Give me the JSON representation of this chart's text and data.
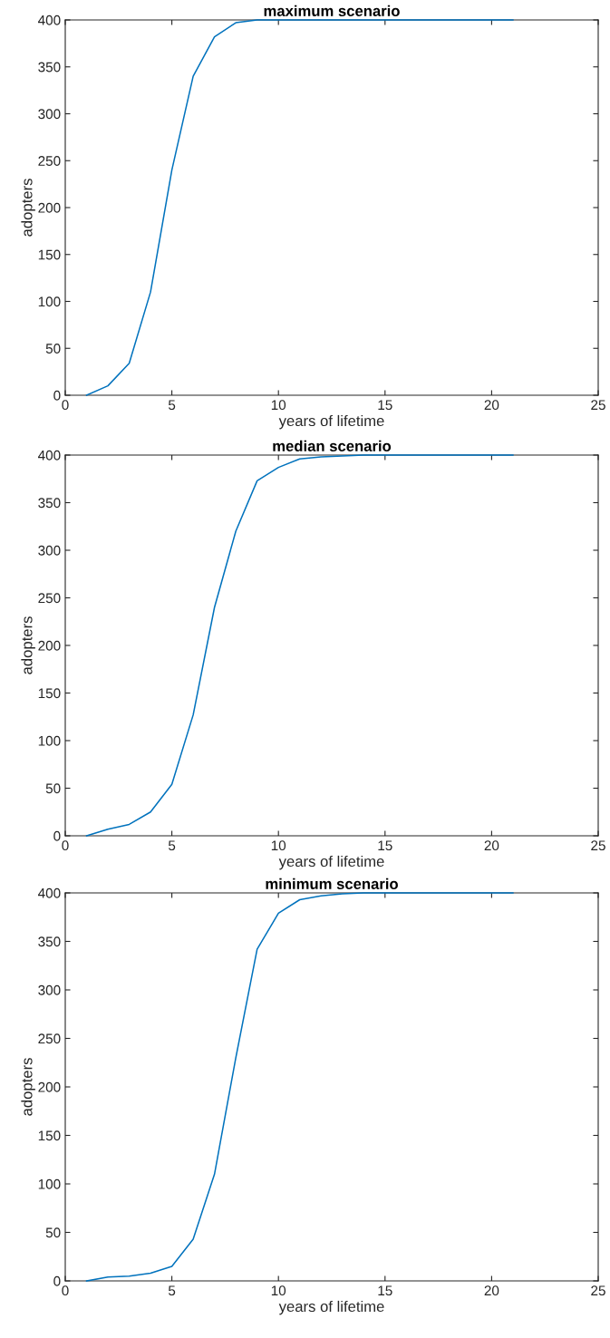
{
  "chart_data": [
    {
      "type": "line",
      "title": "maximum scenario",
      "xlabel": "years of lifetime",
      "ylabel": "adopters",
      "x": [
        1,
        2,
        3,
        4,
        5,
        6,
        7,
        8,
        9,
        10,
        11,
        12,
        13,
        14,
        15,
        16,
        17,
        18,
        19,
        20,
        21
      ],
      "series": [
        {
          "color": "#0072bd",
          "values": [
            0,
            10,
            34,
            110,
            240,
            340,
            382,
            397,
            400,
            400,
            400,
            400,
            400,
            400,
            400,
            400,
            400,
            400,
            400,
            400,
            400
          ]
        }
      ],
      "xlim": [
        0,
        25
      ],
      "xticks": [
        0,
        5,
        10,
        15,
        20,
        25
      ],
      "ylim": [
        0,
        400
      ],
      "yticks": [
        0,
        50,
        100,
        150,
        200,
        250,
        300,
        350,
        400
      ],
      "grid": false
    },
    {
      "type": "line",
      "title": "median scenario",
      "xlabel": "years of lifetime",
      "ylabel": "adopters",
      "x": [
        1,
        2,
        3,
        4,
        5,
        6,
        7,
        8,
        9,
        10,
        11,
        12,
        13,
        14,
        15,
        16,
        17,
        18,
        19,
        20,
        21
      ],
      "series": [
        {
          "color": "#0072bd",
          "values": [
            0,
            7,
            12,
            25,
            54,
            127,
            240,
            320,
            373,
            387,
            396,
            398,
            399,
            400,
            400,
            400,
            400,
            400,
            400,
            400,
            400
          ]
        }
      ],
      "xlim": [
        0,
        25
      ],
      "xticks": [
        0,
        5,
        10,
        15,
        20,
        25
      ],
      "ylim": [
        0,
        400
      ],
      "yticks": [
        0,
        50,
        100,
        150,
        200,
        250,
        300,
        350,
        400
      ],
      "grid": false
    },
    {
      "type": "line",
      "title": "minimum scenario",
      "xlabel": "years of lifetime",
      "ylabel": "adopters",
      "x": [
        1,
        2,
        3,
        4,
        5,
        6,
        7,
        8,
        9,
        10,
        11,
        12,
        13,
        14,
        15,
        16,
        17,
        18,
        19,
        20,
        21
      ],
      "series": [
        {
          "color": "#0072bd",
          "values": [
            0,
            4,
            5,
            8,
            15,
            43,
            110,
            230,
            342,
            379,
            393,
            397,
            399,
            400,
            400,
            400,
            400,
            400,
            400,
            400,
            400
          ]
        }
      ],
      "xlim": [
        0,
        25
      ],
      "xticks": [
        0,
        5,
        10,
        15,
        20,
        25
      ],
      "ylim": [
        0,
        400
      ],
      "yticks": [
        0,
        50,
        100,
        150,
        200,
        250,
        300,
        350,
        400
      ],
      "grid": false
    }
  ]
}
